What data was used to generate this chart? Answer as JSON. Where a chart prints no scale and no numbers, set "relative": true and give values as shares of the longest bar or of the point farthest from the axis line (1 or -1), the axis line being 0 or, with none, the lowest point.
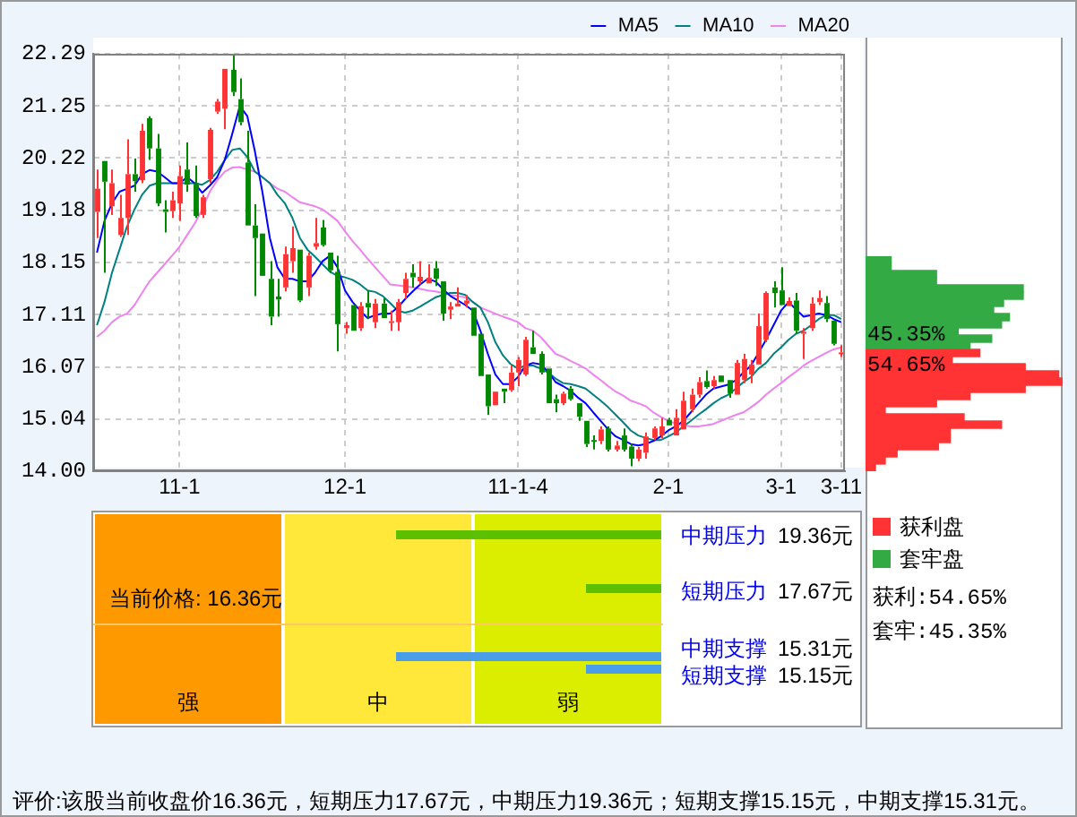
{
  "chart_data": [
    {
      "type": "candlestick",
      "categories": [
        null,
        null,
        null,
        null,
        null,
        null,
        null,
        null,
        null,
        null,
        null,
        "11-1",
        null,
        null,
        null,
        null,
        null,
        null,
        null,
        null,
        null,
        null,
        null,
        null,
        null,
        null,
        null,
        null,
        null,
        null,
        null,
        null,
        null,
        "12-1",
        null,
        null,
        null,
        null,
        null,
        null,
        null,
        null,
        null,
        null,
        null,
        null,
        null,
        null,
        null,
        null,
        null,
        null,
        null,
        null,
        null,
        null,
        "11-1-4",
        null,
        null,
        null,
        null,
        null,
        null,
        null,
        null,
        null,
        null,
        null,
        null,
        null,
        null,
        null,
        null,
        null,
        null,
        null,
        "2-1",
        null,
        null,
        null,
        null,
        null,
        null,
        null,
        null,
        null,
        null,
        null,
        null,
        null,
        null,
        "3-1",
        null,
        null,
        null,
        null,
        null,
        null,
        null,
        "3-11"
      ],
      "ohlc": [
        [
          19.15,
          19.99,
          18.63,
          19.61
        ],
        [
          20.16,
          20.16,
          17.94,
          19.75
        ],
        [
          19.26,
          19.99,
          19.09,
          19.72
        ],
        [
          18.69,
          19.49,
          18.65,
          19.03
        ],
        [
          19.03,
          20.59,
          18.69,
          19.9
        ],
        [
          19.9,
          20.21,
          19.55,
          19.76
        ],
        [
          19.78,
          20.9,
          19.72,
          20.76
        ],
        [
          21.01,
          21.05,
          20.18,
          20.41
        ],
        [
          20.41,
          20.7,
          19.26,
          19.32
        ],
        [
          19.2,
          19.38,
          18.74,
          19.15
        ],
        [
          19.17,
          19.55,
          19.03,
          19.38
        ],
        [
          19.32,
          20.07,
          18.97,
          19.86
        ],
        [
          19.99,
          20.53,
          19.55,
          19.69
        ],
        [
          19.72,
          20.07,
          19.03,
          19.07
        ],
        [
          19.09,
          19.49,
          19.03,
          19.44
        ],
        [
          19.8,
          20.82,
          19.72,
          20.78
        ],
        [
          21.14,
          21.39,
          21.1,
          21.34
        ],
        [
          21.2,
          21.99,
          20.79,
          21.99
        ],
        [
          21.97,
          22.29,
          21.45,
          21.53
        ],
        [
          21.39,
          21.8,
          20.87,
          20.93
        ],
        [
          20.13,
          20.76,
          18.88,
          18.88
        ],
        [
          18.88,
          19.3,
          17.48,
          18.63
        ],
        [
          18.72,
          18.72,
          17.88,
          17.88
        ],
        [
          17.82,
          18.17,
          16.9,
          17.07
        ],
        [
          17.47,
          17.82,
          17.07,
          17.41
        ],
        [
          17.65,
          18.46,
          17.57,
          18.31
        ],
        [
          18.17,
          18.86,
          17.94,
          18.43
        ],
        [
          18.4,
          18.4,
          17.36,
          17.39
        ],
        [
          17.65,
          18.34,
          17.48,
          18.28
        ],
        [
          18.46,
          19.03,
          18.4,
          18.53
        ],
        [
          18.84,
          18.99,
          18.46,
          18.49
        ],
        [
          18.34,
          18.34,
          17.94,
          17.99
        ],
        [
          17.96,
          18.28,
          16.38,
          16.92
        ],
        [
          16.84,
          16.96,
          16.73,
          16.9
        ],
        [
          17.3,
          17.3,
          16.79,
          16.79
        ],
        [
          16.84,
          17.36,
          16.79,
          17.28
        ],
        [
          17.34,
          17.59,
          17.02,
          17.25
        ],
        [
          16.96,
          17.42,
          16.84,
          17.33
        ],
        [
          17.33,
          17.44,
          17.04,
          17.04
        ],
        [
          16.95,
          17.19,
          16.79,
          16.98
        ],
        [
          16.96,
          17.42,
          16.79,
          17.36
        ],
        [
          17.54,
          17.94,
          17.42,
          17.82
        ],
        [
          17.94,
          18.11,
          17.65,
          17.85
        ],
        [
          17.77,
          18.17,
          17.71,
          17.86
        ],
        [
          17.73,
          18.11,
          17.73,
          17.84
        ],
        [
          18.03,
          18.17,
          17.68,
          17.82
        ],
        [
          17.77,
          17.77,
          16.99,
          17.13
        ],
        [
          17.21,
          17.36,
          17.02,
          17.27
        ],
        [
          17.27,
          17.65,
          17.27,
          17.33
        ],
        [
          17.33,
          17.5,
          17.25,
          17.39
        ],
        [
          17.25,
          17.25,
          16.69,
          16.69
        ],
        [
          16.73,
          16.73,
          15.89,
          15.89
        ],
        [
          15.92,
          15.92,
          15.12,
          15.29
        ],
        [
          15.31,
          15.58,
          15.31,
          15.58
        ],
        [
          15.64,
          15.64,
          15.35,
          15.58
        ],
        [
          15.61,
          16.1,
          15.58,
          15.96
        ],
        [
          15.96,
          16.27,
          15.69,
          16.21
        ],
        [
          15.92,
          16.67,
          15.89,
          16.61
        ],
        [
          16.46,
          16.79,
          16.33,
          16.33
        ],
        [
          16.33,
          16.38,
          15.92,
          15.96
        ],
        [
          16.04,
          16.04,
          15.35,
          15.35
        ],
        [
          15.43,
          15.52,
          15.17,
          15.35
        ],
        [
          15.35,
          15.58,
          15.31,
          15.54
        ],
        [
          15.64,
          15.69,
          15.4,
          15.43
        ],
        [
          15.35,
          15.35,
          15.0,
          15.08
        ],
        [
          15.0,
          15.0,
          14.48,
          14.54
        ],
        [
          14.62,
          14.71,
          14.43,
          14.59
        ],
        [
          14.6,
          14.89,
          14.54,
          14.83
        ],
        [
          14.85,
          14.89,
          14.39,
          14.43
        ],
        [
          14.43,
          14.6,
          14.39,
          14.51
        ],
        [
          14.71,
          14.85,
          14.39,
          14.43
        ],
        [
          14.49,
          14.54,
          14.1,
          14.25
        ],
        [
          14.25,
          14.48,
          14.2,
          14.43
        ],
        [
          14.37,
          14.77,
          14.25,
          14.69
        ],
        [
          14.66,
          14.89,
          14.62,
          14.85
        ],
        [
          14.71,
          15.06,
          14.66,
          14.89
        ],
        [
          15.02,
          15.06,
          14.91,
          14.91
        ],
        [
          14.71,
          15.23,
          14.71,
          15.06
        ],
        [
          14.83,
          15.58,
          14.83,
          15.4
        ],
        [
          15.23,
          15.64,
          15.17,
          15.52
        ],
        [
          15.52,
          15.87,
          15.46,
          15.77
        ],
        [
          15.79,
          16.0,
          15.64,
          15.67
        ],
        [
          15.69,
          15.89,
          15.64,
          15.81
        ],
        [
          15.9,
          15.9,
          15.77,
          15.77
        ],
        [
          15.81,
          15.81,
          15.46,
          15.54
        ],
        [
          15.52,
          16.21,
          15.52,
          16.15
        ],
        [
          15.81,
          16.33,
          15.75,
          16.23
        ],
        [
          15.92,
          16.21,
          15.75,
          16.12
        ],
        [
          16.12,
          17.13,
          16.12,
          16.88
        ],
        [
          16.61,
          17.57,
          16.56,
          17.54
        ],
        [
          17.65,
          17.77,
          17.25,
          17.54
        ],
        [
          17.59,
          18.05,
          17.3,
          17.3
        ],
        [
          17.28,
          17.45,
          17.28,
          17.38
        ],
        [
          17.39,
          17.54,
          16.73,
          16.79
        ],
        [
          16.73,
          16.84,
          16.23,
          16.77
        ],
        [
          16.84,
          17.45,
          16.79,
          17.33
        ],
        [
          17.36,
          17.59,
          17.3,
          17.44
        ],
        [
          17.34,
          17.48,
          16.96,
          17.02
        ],
        [
          16.99,
          16.99,
          16.5,
          16.53
        ],
        [
          16.33,
          16.5,
          16.27,
          16.36
        ]
      ],
      "series": [
        {
          "name": "MA5",
          "type": "line",
          "color": "#0000ff",
          "values": [
            18.34,
            18.97,
            19.32,
            19.55,
            19.61,
            19.67,
            19.9,
            19.98,
            19.95,
            19.84,
            19.72,
            19.72,
            19.84,
            19.72,
            19.53,
            19.67,
            19.84,
            20.18,
            20.7,
            21.25,
            21.05,
            20.36,
            19.55,
            18.63,
            18.05,
            17.82,
            17.82,
            17.77,
            17.77,
            17.94,
            18.17,
            18.28,
            18.05,
            17.59,
            17.36,
            17.19,
            17.04,
            17.1,
            17.13,
            17.13,
            17.25,
            17.42,
            17.57,
            17.71,
            17.82,
            17.77,
            17.62,
            17.48,
            17.39,
            17.3,
            17.19,
            16.79,
            16.33,
            15.92,
            15.73,
            15.73,
            15.87,
            16.1,
            16.15,
            16.12,
            15.98,
            15.77,
            15.69,
            15.6,
            15.46,
            15.35,
            15.17,
            15.0,
            14.83,
            14.69,
            14.62,
            14.54,
            14.51,
            14.54,
            14.6,
            14.69,
            14.81,
            14.89,
            15.0,
            15.17,
            15.35,
            15.52,
            15.64,
            15.68,
            15.72,
            15.81,
            15.96,
            16.1,
            16.35,
            16.61,
            16.9,
            17.19,
            17.36,
            17.21,
            17.07,
            17.1,
            17.13,
            17.1,
            17.02,
            16.96
          ]
        },
        {
          "name": "MA10",
          "type": "line",
          "color": "#008080",
          "values": [
            16.9,
            17.36,
            17.94,
            18.4,
            18.86,
            19.2,
            19.49,
            19.67,
            19.72,
            19.72,
            19.72,
            19.72,
            19.72,
            19.72,
            19.69,
            19.78,
            19.95,
            20.18,
            20.38,
            20.41,
            20.24,
            19.95,
            19.84,
            19.72,
            19.49,
            19.32,
            19.03,
            18.63,
            18.4,
            18.26,
            18.11,
            17.96,
            17.88,
            17.85,
            17.8,
            17.71,
            17.59,
            17.56,
            17.48,
            17.34,
            17.19,
            17.15,
            17.19,
            17.27,
            17.36,
            17.45,
            17.5,
            17.54,
            17.54,
            17.5,
            17.36,
            17.25,
            16.96,
            16.56,
            16.3,
            16.13,
            16.04,
            16.1,
            16.1,
            16.04,
            15.96,
            15.84,
            15.75,
            15.73,
            15.69,
            15.64,
            15.52,
            15.4,
            15.27,
            15.12,
            14.97,
            14.81,
            14.71,
            14.66,
            14.62,
            14.62,
            14.69,
            14.77,
            14.89,
            15.0,
            15.12,
            15.23,
            15.35,
            15.45,
            15.52,
            15.64,
            15.77,
            15.87,
            16.04,
            16.15,
            16.33,
            16.46,
            16.61,
            16.73,
            16.79,
            16.9,
            17.02,
            17.1,
            17.1,
            17.02
          ]
        },
        {
          "name": "MA20",
          "type": "line",
          "color": "#ee82ee",
          "values": [
            16.67,
            16.79,
            16.96,
            17.07,
            17.13,
            17.3,
            17.54,
            17.77,
            17.94,
            18.11,
            18.28,
            18.46,
            18.69,
            18.92,
            19.2,
            19.55,
            19.78,
            19.95,
            20.03,
            20.04,
            19.99,
            19.95,
            19.84,
            19.72,
            19.61,
            19.55,
            19.44,
            19.34,
            19.3,
            19.26,
            19.2,
            19.09,
            18.97,
            18.76,
            18.57,
            18.4,
            18.22,
            18.05,
            17.88,
            17.71,
            17.69,
            17.67,
            17.65,
            17.62,
            17.59,
            17.57,
            17.54,
            17.5,
            17.48,
            17.45,
            17.36,
            17.25,
            17.19,
            17.13,
            17.07,
            17.02,
            16.96,
            16.84,
            16.79,
            16.67,
            16.5,
            16.33,
            16.27,
            16.19,
            16.12,
            16.04,
            15.92,
            15.81,
            15.69,
            15.58,
            15.5,
            15.4,
            15.35,
            15.29,
            15.17,
            15.08,
            15.0,
            14.94,
            14.91,
            14.89,
            14.89,
            14.91,
            14.94,
            15.0,
            15.06,
            15.12,
            15.17,
            15.27,
            15.38,
            15.52,
            15.64,
            15.75,
            15.87,
            15.98,
            16.1,
            16.19,
            16.27,
            16.35,
            16.42,
            16.46
          ]
        }
      ],
      "ylim": [
        14,
        22.29
      ],
      "yticks": [
        {
          "value": 14,
          "label": "14.00"
        },
        15.04,
        16.07,
        17.11,
        18.15,
        19.18,
        20.22,
        21.25,
        22.29
      ],
      "grid": true,
      "legend": "top right",
      "annotations": [
        "评价:该股当前收盘价16.36元，短期压力17.67元，中期压力19.36元；短期支撑15.15元，中期支撑15.31元。"
      ]
    },
    {
      "type": "bar",
      "orientation": "horizontal",
      "relative": true,
      "stacked": true,
      "legend": "bottom",
      "categories": [
        null,
        null,
        null,
        null,
        null,
        null,
        null,
        null,
        null,
        null,
        null,
        null,
        null,
        null,
        null,
        null,
        null,
        null,
        null,
        null,
        null,
        null,
        null,
        null,
        null,
        null,
        null,
        null,
        null,
        null
      ],
      "series": [
        {
          "name": "获利盘",
          "color": "#ff3333",
          "values": [
            null,
            null,
            null,
            null,
            null,
            null,
            null,
            null,
            null,
            null,
            null,
            null,
            null,
            0.58,
            0.44,
            0.81,
            0.98,
            1,
            0.81,
            0.53,
            0.36,
            0.1,
            0.5,
            0.69,
            0.43,
            0.43,
            0.37,
            0.16,
            0.1,
            0.05
          ]
        },
        {
          "name": "套牢盘",
          "color": "#33aa44",
          "values": [
            0.13,
            0.13,
            0.36,
            0.36,
            0.8,
            0.8,
            0.7,
            0.65,
            0.73,
            0.69,
            0.47,
            0.64,
            0.53,
            null,
            null,
            null,
            null,
            null,
            null,
            null,
            null,
            null,
            null,
            null,
            null,
            null,
            null,
            null,
            null,
            null
          ]
        }
      ],
      "annotations": [
        "45.35%",
        "54.65%",
        "获利:54.65%",
        "套牢:45.35%"
      ]
    },
    {
      "type": "other",
      "categories": [
        "强",
        "中",
        "弱"
      ],
      "colors": [
        "#ff9900",
        "#ffe83a",
        "#dcee00"
      ],
      "annotations": [
        "当前价格: 16.36元",
        "中期压力",
        "19.36元",
        "短期压力",
        "17.67元",
        "中期支撑",
        "15.31元",
        "短期支撑",
        "15.15元"
      ]
    }
  ]
}
